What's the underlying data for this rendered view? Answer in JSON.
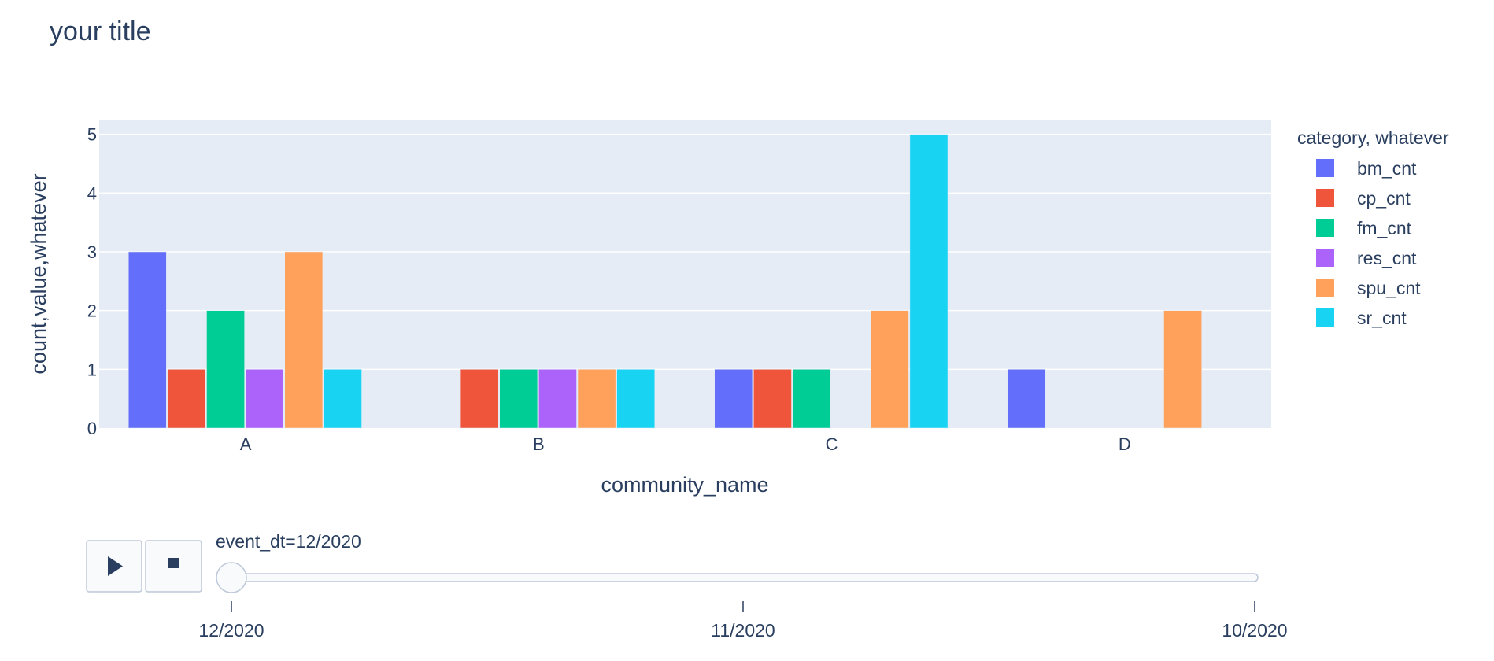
{
  "chart_data": {
    "type": "bar",
    "title": "your title",
    "xlabel": "community_name",
    "ylabel": "count,value,whatever",
    "categories": [
      "A",
      "B",
      "C",
      "D"
    ],
    "ylim": [
      0,
      5.25
    ],
    "yticks": [
      "0",
      "1",
      "2",
      "3",
      "4",
      "5"
    ],
    "grid": true,
    "legend": {
      "title": "category, whatever",
      "placement": "right"
    },
    "series": [
      {
        "name": "bm_cnt",
        "color": "#636efa",
        "values": [
          3,
          0,
          1,
          1
        ]
      },
      {
        "name": "cp_cnt",
        "color": "#ef553b",
        "values": [
          1,
          1,
          1,
          0
        ]
      },
      {
        "name": "fm_cnt",
        "color": "#00cc96",
        "values": [
          2,
          1,
          1,
          0
        ]
      },
      {
        "name": "res_cnt",
        "color": "#ab63fa",
        "values": [
          1,
          1,
          0,
          0
        ]
      },
      {
        "name": "spu_cnt",
        "color": "#ffa15a",
        "values": [
          3,
          1,
          2,
          2
        ]
      },
      {
        "name": "sr_cnt",
        "color": "#19d3f3",
        "values": [
          1,
          1,
          5,
          0
        ]
      }
    ]
  },
  "animation": {
    "current_label": "event_dt=12/2020",
    "steps": [
      "12/2020",
      "11/2020",
      "10/2020"
    ],
    "current_index": 0,
    "play_icon": "play-icon",
    "stop_icon": "stop-icon"
  },
  "colors": {
    "plot_background": "#e5ecf6",
    "grid": "#ffffff",
    "text": "#2a3f5f"
  }
}
